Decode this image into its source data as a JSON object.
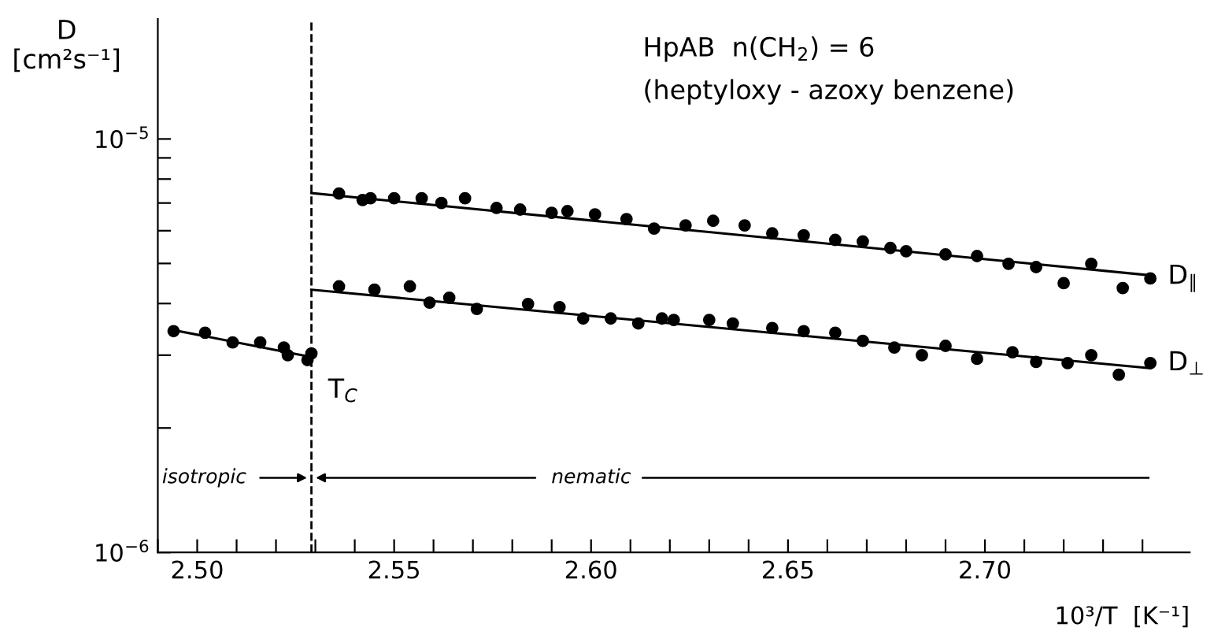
{
  "chart_data": {
    "type": "scatter",
    "title": "HpAB  n(CH$_{2}$) = 6",
    "subtitle": "(heptyloxy - azoxy benzene)",
    "xlabel": "10³/T  [K⁻¹]",
    "ylabel": "D\n[cm²s⁻¹]",
    "log": "y",
    "marker": "circle",
    "legend": false,
    "grid": false,
    "xlim": [
      2.49,
      2.752
    ],
    "ylim": [
      1e-06,
      1.95e-05
    ],
    "xticks": [
      {
        "value": 2.49,
        "label": null
      },
      {
        "value": 2.5,
        "label": "2.50"
      },
      {
        "value": 2.51,
        "label": null
      },
      {
        "value": 2.52,
        "label": null
      },
      {
        "value": 2.53,
        "label": null
      },
      {
        "value": 2.54,
        "label": null
      },
      {
        "value": 2.55,
        "label": "2.55"
      },
      {
        "value": 2.56,
        "label": null
      },
      {
        "value": 2.57,
        "label": null
      },
      {
        "value": 2.58,
        "label": null
      },
      {
        "value": 2.59,
        "label": null
      },
      {
        "value": 2.6,
        "label": "2.60"
      },
      {
        "value": 2.61,
        "label": null
      },
      {
        "value": 2.62,
        "label": null
      },
      {
        "value": 2.63,
        "label": null
      },
      {
        "value": 2.64,
        "label": null
      },
      {
        "value": 2.65,
        "label": "2.65"
      },
      {
        "value": 2.66,
        "label": null
      },
      {
        "value": 2.67,
        "label": null
      },
      {
        "value": 2.68,
        "label": null
      },
      {
        "value": 2.69,
        "label": null
      },
      {
        "value": 2.7,
        "label": "2.70"
      },
      {
        "value": 2.71,
        "label": null
      },
      {
        "value": 2.72,
        "label": null
      },
      {
        "value": 2.73,
        "label": null
      },
      {
        "value": 2.74,
        "label": null
      }
    ],
    "yticks": [
      {
        "value": 1e-06,
        "label": "10$^{−6}$"
      },
      {
        "value": 2e-06,
        "label": null
      },
      {
        "value": 3e-06,
        "label": null
      },
      {
        "value": 4e-06,
        "label": null
      },
      {
        "value": 5e-06,
        "label": null
      },
      {
        "value": 6e-06,
        "label": null
      },
      {
        "value": 7e-06,
        "label": null
      },
      {
        "value": 8e-06,
        "label": null
      },
      {
        "value": 9e-06,
        "label": null
      },
      {
        "value": 1e-05,
        "label": "10$^{−5}$"
      }
    ],
    "ref_lines": [
      {
        "axis": "x",
        "value": 2.529,
        "label": "T$_{C}$",
        "line_style": "dashed",
        "color": "#000000"
      }
    ],
    "annotations": [
      "isotropic",
      "nematic"
    ],
    "series": [
      {
        "color": "#000000",
        "x": [
          2.494,
          2.502,
          2.509,
          2.516,
          2.522,
          2.523,
          2.529,
          2.528
        ],
        "values": [
          3.43e-06,
          3.4e-06,
          3.22e-06,
          3.22e-06,
          3.13e-06,
          3e-06,
          3.03e-06,
          2.92e-06
        ]
      },
      {
        "name": "D$_{∥}$",
        "color": "#000000",
        "x": [
          2.536,
          2.542,
          2.544,
          2.55,
          2.557,
          2.562,
          2.568,
          2.576,
          2.582,
          2.59,
          2.594,
          2.601,
          2.609,
          2.616,
          2.624,
          2.631,
          2.639,
          2.646,
          2.654,
          2.662,
          2.669,
          2.676,
          2.68,
          2.69,
          2.698,
          2.706,
          2.713,
          2.72,
          2.727,
          2.735,
          2.742
        ],
        "values": [
          7.38e-06,
          7.12e-06,
          7.19e-06,
          7.19e-06,
          7.19e-06,
          7e-06,
          7.19e-06,
          6.81e-06,
          6.75e-06,
          6.63e-06,
          6.69e-06,
          6.57e-06,
          6.4e-06,
          6.07e-06,
          6.18e-06,
          6.34e-06,
          6.18e-06,
          5.91e-06,
          5.85e-06,
          5.7e-06,
          5.65e-06,
          5.45e-06,
          5.35e-06,
          5.26e-06,
          5.21e-06,
          4.99e-06,
          4.9e-06,
          4.48e-06,
          4.99e-06,
          4.36e-06,
          4.6e-06
        ]
      },
      {
        "name": "D$_{⊥}$",
        "color": "#000000",
        "x": [
          2.536,
          2.545,
          2.554,
          2.559,
          2.564,
          2.571,
          2.584,
          2.592,
          2.598,
          2.605,
          2.612,
          2.618,
          2.621,
          2.63,
          2.636,
          2.646,
          2.654,
          2.662,
          2.669,
          2.677,
          2.684,
          2.69,
          2.698,
          2.707,
          2.713,
          2.721,
          2.727,
          2.734,
          2.742
        ],
        "values": [
          4.4e-06,
          4.32e-06,
          4.4e-06,
          4.02e-06,
          4.13e-06,
          3.88e-06,
          3.99e-06,
          3.92e-06,
          3.68e-06,
          3.68e-06,
          3.58e-06,
          3.68e-06,
          3.65e-06,
          3.65e-06,
          3.58e-06,
          3.49e-06,
          3.43e-06,
          3.4e-06,
          3.25e-06,
          3.13e-06,
          3e-06,
          3.16e-06,
          2.94e-06,
          3.05e-06,
          2.89e-06,
          2.87e-06,
          3e-06,
          2.69e-06,
          2.87e-06
        ]
      },
      {
        "type": "line",
        "marker": "none",
        "color": "#000000",
        "x": [
          2.494,
          2.529
        ],
        "values": [
          3.45e-06,
          2.97e-06
        ]
      },
      {
        "type": "line",
        "marker": "none",
        "color": "#000000",
        "x": [
          2.529,
          2.742
        ],
        "values": [
          7.4e-06,
          4.68e-06
        ]
      },
      {
        "type": "line",
        "marker": "none",
        "color": "#000000",
        "x": [
          2.529,
          2.742
        ],
        "values": [
          4.32e-06,
          2.79e-06
        ]
      }
    ]
  }
}
